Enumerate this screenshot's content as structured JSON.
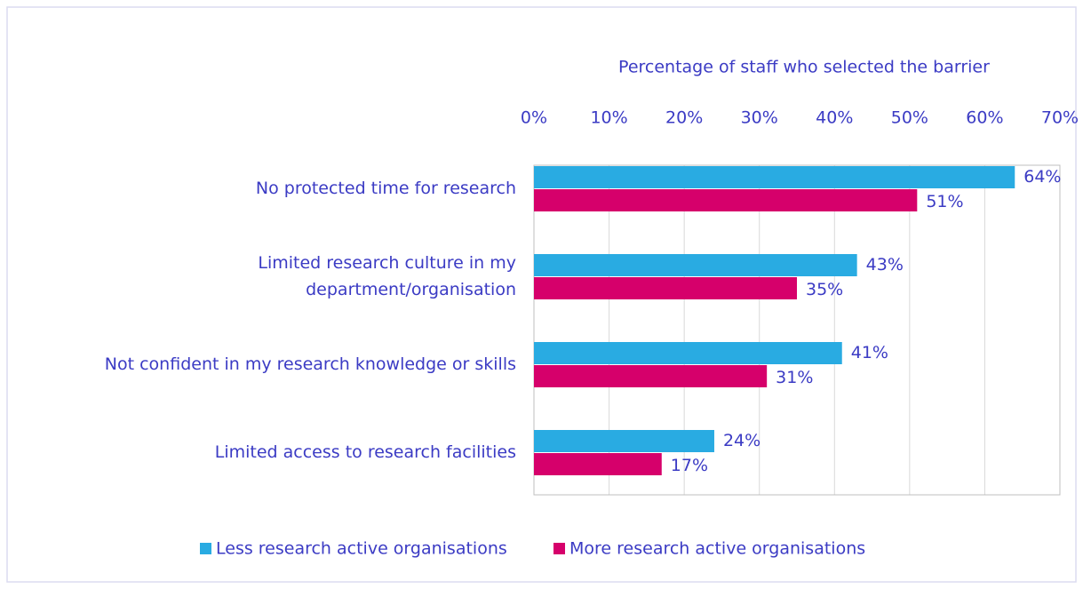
{
  "chart_data": {
    "type": "bar",
    "orientation": "horizontal",
    "x_axis_label": "Percentage of staff who selected the barrier",
    "categories": [
      "No protected time for research",
      "Limited research culture in my\ndepartment/organisation",
      "Not confident in my research knowledge or skills",
      "Limited access to research facilities"
    ],
    "series": [
      {
        "name": "Less research active organisations",
        "color": "#29abe2",
        "values": [
          64,
          43,
          41,
          24
        ],
        "value_labels": [
          "64%",
          "43%",
          "41%",
          "24%"
        ]
      },
      {
        "name": "More research active organisations",
        "color": "#d6006b",
        "values": [
          51,
          35,
          31,
          17
        ],
        "value_labels": [
          "51%",
          "35%",
          "31%",
          "17%"
        ]
      }
    ],
    "xlim": [
      0,
      70
    ],
    "xticks": [
      {
        "value": 0,
        "label": "0%"
      },
      {
        "value": 10,
        "label": "10%"
      },
      {
        "value": 20,
        "label": "20%"
      },
      {
        "value": 30,
        "label": "30%"
      },
      {
        "value": 40,
        "label": "40%"
      },
      {
        "value": 50,
        "label": "50%"
      },
      {
        "value": 60,
        "label": "60%"
      },
      {
        "value": 70,
        "label": "70%"
      }
    ],
    "grid": true,
    "legend": "bottom"
  }
}
